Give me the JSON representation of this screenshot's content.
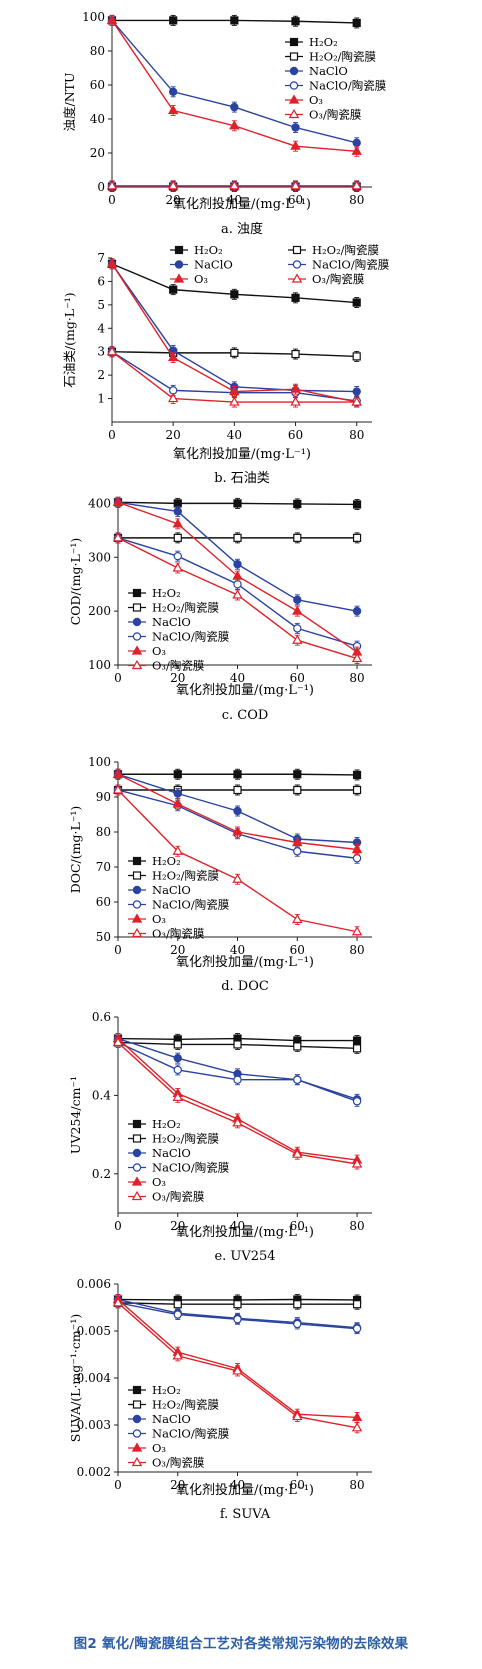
{
  "figure_caption": "图2 氧化/陶瓷膜组合工艺对各类常规污染物的去除效果",
  "colors": {
    "black": "#111111",
    "blue": "#2a43a0",
    "red": "#e0212a"
  },
  "chart_data": [
    {
      "type": "line",
      "caption": "a. 浊度",
      "xlabel": "氧化剂投加量/(mg·L⁻¹)",
      "ylabel": "浊度/NTU",
      "xlim": [
        0,
        85
      ],
      "ylim": [
        0,
        100
      ],
      "xticks": [
        0,
        20,
        40,
        60,
        80
      ],
      "yticks": [
        0,
        20,
        40,
        60,
        80,
        100
      ],
      "legend_position": "right",
      "series": [
        {
          "name": "H₂O₂",
          "marker": "square-filled",
          "color": "#111111",
          "x": [
            0,
            20,
            40,
            60,
            80
          ],
          "y": [
            98,
            98,
            98,
            97.5,
            96.5
          ]
        },
        {
          "name": "H₂O₂/陶瓷膜",
          "marker": "square-open",
          "color": "#111111",
          "x": [
            0,
            20,
            40,
            60,
            80
          ],
          "y": [
            0.3,
            0.3,
            0.3,
            0.3,
            0.3
          ]
        },
        {
          "name": "NaClO",
          "marker": "circle-filled",
          "color": "#2a43a0",
          "x": [
            0,
            20,
            40,
            60,
            80
          ],
          "y": [
            98,
            56,
            47,
            35,
            26
          ]
        },
        {
          "name": "NaClO/陶瓷膜",
          "marker": "circle-open",
          "color": "#2a43a0",
          "x": [
            0,
            20,
            40,
            60,
            80
          ],
          "y": [
            0.5,
            0.5,
            0.5,
            0.5,
            0.5
          ]
        },
        {
          "name": "O₃",
          "marker": "triangle-filled",
          "color": "#e0212a",
          "x": [
            0,
            20,
            40,
            60,
            80
          ],
          "y": [
            98,
            45,
            36,
            24,
            21
          ]
        },
        {
          "name": "O₃/陶瓷膜",
          "marker": "triangle-open",
          "color": "#e0212a",
          "x": [
            0,
            20,
            40,
            60,
            80
          ],
          "y": [
            0.7,
            0.7,
            0.7,
            0.7,
            0.7
          ]
        }
      ]
    },
    {
      "type": "line",
      "caption": "b. 石油类",
      "xlabel": "氧化剂投加量/(mg·L⁻¹)",
      "ylabel": "石油类/(mg·L⁻¹)",
      "xlim": [
        0,
        85
      ],
      "ylim": [
        0,
        7
      ],
      "xticks": [
        0,
        20,
        40,
        60,
        80
      ],
      "yticks": [
        1,
        2,
        3,
        4,
        5,
        6,
        7
      ],
      "legend_position": "top",
      "series": [
        {
          "name": "H₂O₂",
          "marker": "square-filled",
          "color": "#111111",
          "x": [
            0,
            20,
            40,
            60,
            80
          ],
          "y": [
            6.75,
            5.65,
            5.45,
            5.3,
            5.1
          ]
        },
        {
          "name": "H₂O₂/陶瓷膜",
          "marker": "square-open",
          "color": "#111111",
          "x": [
            0,
            20,
            40,
            60,
            80
          ],
          "y": [
            3.0,
            2.95,
            2.95,
            2.9,
            2.8
          ]
        },
        {
          "name": "NaClO",
          "marker": "circle-filled",
          "color": "#2a43a0",
          "x": [
            0,
            20,
            40,
            60,
            80
          ],
          "y": [
            6.75,
            3.05,
            1.5,
            1.35,
            1.3
          ]
        },
        {
          "name": "NaClO/陶瓷膜",
          "marker": "circle-open",
          "color": "#2a43a0",
          "x": [
            0,
            20,
            40,
            60,
            80
          ],
          "y": [
            3.0,
            1.35,
            1.25,
            1.25,
            0.9
          ]
        },
        {
          "name": "O₃",
          "marker": "triangle-filled",
          "color": "#e0212a",
          "x": [
            0,
            20,
            40,
            60,
            80
          ],
          "y": [
            6.75,
            2.75,
            1.3,
            1.4,
            0.85
          ]
        },
        {
          "name": "O₃/陶瓷膜",
          "marker": "triangle-open",
          "color": "#e0212a",
          "x": [
            0,
            20,
            40,
            60,
            80
          ],
          "y": [
            3.0,
            1.0,
            0.85,
            0.85,
            0.85
          ]
        }
      ]
    },
    {
      "type": "line",
      "caption": "c. COD",
      "xlabel": "氧化剂投加量/(mg·L⁻¹)",
      "ylabel": "COD/(mg·L⁻¹)",
      "xlim": [
        0,
        85
      ],
      "ylim": [
        100,
        410
      ],
      "xticks": [
        0,
        20,
        40,
        60,
        80
      ],
      "yticks": [
        100,
        200,
        300,
        400
      ],
      "legend_position": "left",
      "series": [
        {
          "name": "H₂O₂",
          "marker": "square-filled",
          "color": "#111111",
          "x": [
            0,
            20,
            40,
            60,
            80
          ],
          "y": [
            402,
            400,
            400,
            399,
            398
          ]
        },
        {
          "name": "H₂O₂/陶瓷膜",
          "marker": "square-open",
          "color": "#111111",
          "x": [
            0,
            20,
            40,
            60,
            80
          ],
          "y": [
            336,
            336,
            336,
            336,
            336
          ]
        },
        {
          "name": "NaClO",
          "marker": "circle-filled",
          "color": "#2a43a0",
          "x": [
            0,
            20,
            40,
            60,
            80
          ],
          "y": [
            402,
            385,
            287,
            221,
            200
          ]
        },
        {
          "name": "NaClO/陶瓷膜",
          "marker": "circle-open",
          "color": "#2a43a0",
          "x": [
            0,
            20,
            40,
            60,
            80
          ],
          "y": [
            336,
            302,
            250,
            168,
            135
          ]
        },
        {
          "name": "O₃",
          "marker": "triangle-filled",
          "color": "#e0212a",
          "x": [
            0,
            20,
            40,
            60,
            80
          ],
          "y": [
            402,
            362,
            265,
            200,
            124
          ]
        },
        {
          "name": "O₃/陶瓷膜",
          "marker": "triangle-open",
          "color": "#e0212a",
          "x": [
            0,
            20,
            40,
            60,
            80
          ],
          "y": [
            336,
            280,
            230,
            146,
            112
          ]
        }
      ]
    },
    {
      "type": "line",
      "caption": "d. DOC",
      "xlabel": "氧化剂投加量/(mg·L⁻¹)",
      "ylabel": "DOC/(mg·L⁻¹)",
      "xlim": [
        0,
        85
      ],
      "ylim": [
        50,
        100
      ],
      "xticks": [
        0,
        20,
        40,
        60,
        80
      ],
      "yticks": [
        50,
        60,
        70,
        80,
        90,
        100
      ],
      "legend_position": "bottom-left",
      "series": [
        {
          "name": "H₂O₂",
          "marker": "square-filled",
          "color": "#111111",
          "x": [
            0,
            20,
            40,
            60,
            80
          ],
          "y": [
            96.5,
            96.5,
            96.5,
            96.5,
            96.3
          ]
        },
        {
          "name": "H₂O₂/陶瓷膜",
          "marker": "square-open",
          "color": "#111111",
          "x": [
            0,
            20,
            40,
            60,
            80
          ],
          "y": [
            92,
            92,
            92,
            92,
            92
          ]
        },
        {
          "name": "NaClO",
          "marker": "circle-filled",
          "color": "#2a43a0",
          "x": [
            0,
            20,
            40,
            60,
            80
          ],
          "y": [
            96.5,
            91,
            86,
            78,
            77
          ]
        },
        {
          "name": "NaClO/陶瓷膜",
          "marker": "circle-open",
          "color": "#2a43a0",
          "x": [
            0,
            20,
            40,
            60,
            80
          ],
          "y": [
            92,
            87.5,
            79.5,
            74.5,
            72.5
          ]
        },
        {
          "name": "O₃",
          "marker": "triangle-filled",
          "color": "#e0212a",
          "x": [
            0,
            20,
            40,
            60,
            80
          ],
          "y": [
            96.5,
            88,
            80,
            77,
            75
          ]
        },
        {
          "name": "O₃/陶瓷膜",
          "marker": "triangle-open",
          "color": "#e0212a",
          "x": [
            0,
            20,
            40,
            60,
            80
          ],
          "y": [
            92,
            74.5,
            66.5,
            55,
            51.5
          ]
        }
      ]
    },
    {
      "type": "line",
      "caption": "e. UV254",
      "xlabel": "氧化剂投加量/(mg·L⁻¹)",
      "ylabel": "UV254/cm⁻¹",
      "xlim": [
        0,
        85
      ],
      "ylim": [
        0.1,
        0.6
      ],
      "xticks": [
        0,
        20,
        40,
        60,
        80
      ],
      "yticks": [
        0.2,
        0.4,
        0.6
      ],
      "legend_position": "bottom-left",
      "series": [
        {
          "name": "H₂O₂",
          "marker": "square-filled",
          "color": "#111111",
          "x": [
            0,
            20,
            40,
            60,
            80
          ],
          "y": [
            0.545,
            0.543,
            0.545,
            0.54,
            0.54
          ]
        },
        {
          "name": "H₂O₂/陶瓷膜",
          "marker": "square-open",
          "color": "#111111",
          "x": [
            0,
            20,
            40,
            60,
            80
          ],
          "y": [
            0.535,
            0.53,
            0.53,
            0.525,
            0.52
          ]
        },
        {
          "name": "NaClO",
          "marker": "circle-filled",
          "color": "#2a43a0",
          "x": [
            0,
            20,
            40,
            60,
            80
          ],
          "y": [
            0.545,
            0.495,
            0.455,
            0.44,
            0.39
          ]
        },
        {
          "name": "NaClO/陶瓷膜",
          "marker": "circle-open",
          "color": "#2a43a0",
          "x": [
            0,
            20,
            40,
            60,
            80
          ],
          "y": [
            0.535,
            0.465,
            0.44,
            0.44,
            0.385
          ]
        },
        {
          "name": "O₃",
          "marker": "triangle-filled",
          "color": "#e0212a",
          "x": [
            0,
            20,
            40,
            60,
            80
          ],
          "y": [
            0.545,
            0.405,
            0.34,
            0.255,
            0.235
          ]
        },
        {
          "name": "O₃/陶瓷膜",
          "marker": "triangle-open",
          "color": "#e0212a",
          "x": [
            0,
            20,
            40,
            60,
            80
          ],
          "y": [
            0.535,
            0.395,
            0.33,
            0.25,
            0.225
          ]
        }
      ]
    },
    {
      "type": "line",
      "caption": "f. SUVA",
      "xlabel": "氧化剂投加量/(mg·L⁻¹)",
      "ylabel": "SUVA/(L·mg⁻¹·cm⁻¹)",
      "xlim": [
        0,
        85
      ],
      "ylim": [
        0.002,
        0.006
      ],
      "xticks": [
        0,
        20,
        40,
        60,
        80
      ],
      "yticks": [
        0.002,
        0.003,
        0.004,
        0.005,
        0.006
      ],
      "legend_position": "bottom-left",
      "series": [
        {
          "name": "H₂O₂",
          "marker": "square-filled",
          "color": "#111111",
          "x": [
            0,
            20,
            40,
            60,
            80
          ],
          "y": [
            0.00567,
            0.00566,
            0.00566,
            0.00567,
            0.00566
          ]
        },
        {
          "name": "H₂O₂/陶瓷膜",
          "marker": "square-open",
          "color": "#111111",
          "x": [
            0,
            20,
            40,
            60,
            80
          ],
          "y": [
            0.0056,
            0.00557,
            0.00557,
            0.00557,
            0.00557
          ]
        },
        {
          "name": "NaClO",
          "marker": "circle-filled",
          "color": "#2a43a0",
          "x": [
            0,
            20,
            40,
            60,
            80
          ],
          "y": [
            0.00567,
            0.00538,
            0.00527,
            0.00518,
            0.00507
          ]
        },
        {
          "name": "NaClO/陶瓷膜",
          "marker": "circle-open",
          "color": "#2a43a0",
          "x": [
            0,
            20,
            40,
            60,
            80
          ],
          "y": [
            0.0056,
            0.00535,
            0.00525,
            0.00515,
            0.00505
          ]
        },
        {
          "name": "O₃",
          "marker": "triangle-filled",
          "color": "#e0212a",
          "x": [
            0,
            20,
            40,
            60,
            80
          ],
          "y": [
            0.00567,
            0.00455,
            0.0042,
            0.00323,
            0.00316
          ]
        },
        {
          "name": "O₃/陶瓷膜",
          "marker": "triangle-open",
          "color": "#e0212a",
          "x": [
            0,
            20,
            40,
            60,
            80
          ],
          "y": [
            0.0056,
            0.00447,
            0.00415,
            0.00318,
            0.00294
          ]
        }
      ]
    }
  ]
}
